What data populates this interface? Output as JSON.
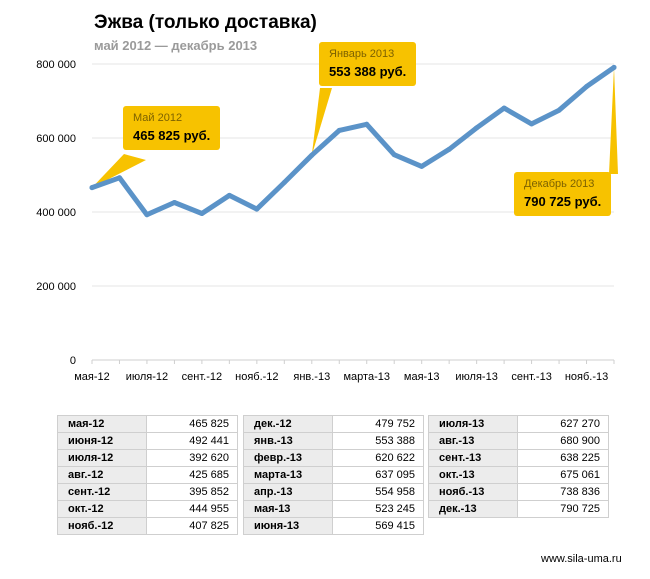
{
  "title": "Эжва (только доставка)",
  "subtitle": "май 2012 — декабрь 2013",
  "footer": "www.sila-uma.ru",
  "colors": {
    "line": "#5b93c8",
    "callout": "#f7c200",
    "grid": "#e6e6e6"
  },
  "callouts": [
    {
      "label": "Май 2012",
      "value": "465 825 руб."
    },
    {
      "label": "Январь 2013",
      "value": "553 388 руб."
    },
    {
      "label": "Декабрь 2013",
      "value": "790 725 руб."
    }
  ],
  "chart_data": {
    "type": "line",
    "title": "Эжва (только доставка)",
    "subtitle": "май 2012 — декабрь 2013",
    "ylim": [
      0,
      800000
    ],
    "yticks": [
      0,
      200000,
      400000,
      600000,
      800000
    ],
    "ytick_labels": [
      "0",
      "200 000",
      "400 000",
      "600 000",
      "800 000"
    ],
    "grid": true,
    "categories": [
      "мая-12",
      "июня-12",
      "июля-12",
      "авг.-12",
      "сент.-12",
      "окт.-12",
      "нояб.-12",
      "дек.-12",
      "янв.-13",
      "февр.-13",
      "марта-13",
      "апр.-13",
      "мая-13",
      "июня-13",
      "июля-13",
      "авг.-13",
      "сент.-13",
      "окт.-13",
      "нояб.-13",
      "дек.-13"
    ],
    "xtick_labels": [
      "мая-12",
      "",
      "июля-12",
      "",
      "сент.-12",
      "",
      "нояб.-12",
      "",
      "янв.-13",
      "",
      "марта-13",
      "",
      "мая-13",
      "",
      "июля-13",
      "",
      "сент.-13",
      "",
      "нояб.-13",
      ""
    ],
    "values": [
      465825,
      492441,
      392620,
      425685,
      395852,
      444955,
      407825,
      479752,
      553388,
      620622,
      637095,
      554958,
      523245,
      569415,
      627270,
      680900,
      638225,
      675061,
      738836,
      790725
    ]
  },
  "tables": [
    {
      "rows": [
        {
          "month": "мая-12",
          "value": "465 825"
        },
        {
          "month": "июня-12",
          "value": "492 441"
        },
        {
          "month": "июля-12",
          "value": "392 620"
        },
        {
          "month": "авг.-12",
          "value": "425 685"
        },
        {
          "month": "сент.-12",
          "value": "395 852"
        },
        {
          "month": "окт.-12",
          "value": "444 955"
        },
        {
          "month": "нояб.-12",
          "value": "407 825"
        }
      ]
    },
    {
      "rows": [
        {
          "month": "дек.-12",
          "value": "479 752"
        },
        {
          "month": "янв.-13",
          "value": "553 388"
        },
        {
          "month": "февр.-13",
          "value": "620 622"
        },
        {
          "month": "марта-13",
          "value": "637 095"
        },
        {
          "month": "апр.-13",
          "value": "554 958"
        },
        {
          "month": "мая-13",
          "value": "523 245"
        },
        {
          "month": "июня-13",
          "value": "569 415"
        }
      ]
    },
    {
      "rows": [
        {
          "month": "июля-13",
          "value": "627 270"
        },
        {
          "month": "авг.-13",
          "value": "680 900"
        },
        {
          "month": "сент.-13",
          "value": "638 225"
        },
        {
          "month": "окт.-13",
          "value": "675 061"
        },
        {
          "month": "нояб.-13",
          "value": "738 836"
        },
        {
          "month": "дек.-13",
          "value": "790 725"
        }
      ]
    }
  ]
}
